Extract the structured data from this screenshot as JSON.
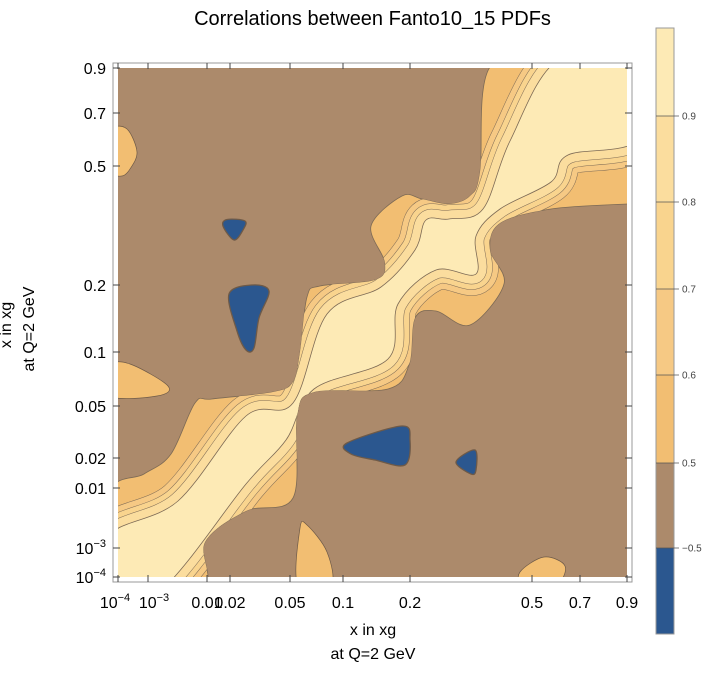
{
  "chart_data": {
    "type": "heatmap",
    "subtype": "contour",
    "title": "Correlations between Fanto10_15 PDFs",
    "xlabel": "x in xg",
    "xlabel2": "at Q=2 GeV",
    "ylabel": "x in xg",
    "ylabel2": "at Q=2 GeV",
    "x_ticks": [
      "10^-4",
      "10^-3",
      "0.01",
      "0.02",
      "0.05",
      "0.1",
      "0.2",
      "0.5",
      "0.7",
      "0.9"
    ],
    "y_ticks": [
      "0.9",
      "0.7",
      "0.5",
      "0.2",
      "0.1",
      "0.05",
      "0.02",
      "0.01",
      "10^-3",
      "10^-4"
    ],
    "xlim": [
      0.0001,
      0.9
    ],
    "ylim": [
      0.0001,
      0.9
    ],
    "contour_levels": [
      -0.5,
      0.5,
      0.6,
      0.7,
      0.8,
      0.9
    ],
    "colorbar_labels": [
      "0.9",
      "0.8",
      "0.7",
      "0.6",
      "0.5",
      "-0.5"
    ],
    "colors": {
      "below_-0.5": "#2b578f",
      "-0.5_to_0.5": "#ac8a6b",
      "0.5_to_0.6": "#f2be72",
      "0.6_to_0.7": "#f6c984",
      "0.7_to_0.8": "#f9d48e",
      "0.8_to_0.9": "#fbdd9e",
      "above_0.9": "#fdeab5"
    },
    "description_regions": {
      "diagonal": "high correlation (>0.9) along x1 = x2",
      "anticorrelated_spots": 4
    }
  }
}
